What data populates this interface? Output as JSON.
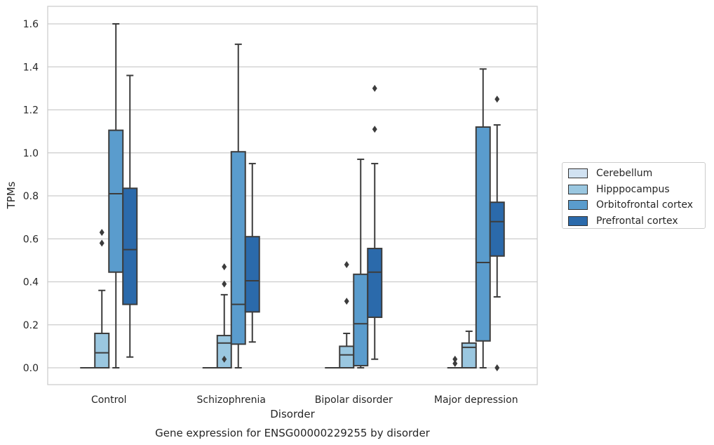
{
  "chart_data": {
    "type": "boxplot",
    "title": "Gene expression for ENSG00000229255 by disorder",
    "xlabel": "Disorder",
    "ylabel": "TPMs",
    "ylim": [
      -0.08,
      1.68
    ],
    "yticks": [
      0.0,
      0.2,
      0.4,
      0.6,
      0.8,
      1.0,
      1.2,
      1.4,
      1.6
    ],
    "ytick_labels": [
      "0.0",
      "0.2",
      "0.4",
      "0.6",
      "0.8",
      "1.0",
      "1.2",
      "1.4",
      "1.6"
    ],
    "grid": "horizontal",
    "legend_position": "right",
    "categories": [
      "Control",
      "Schizophrenia",
      "Bipolar disorder",
      "Major depression"
    ],
    "series": [
      {
        "name": "Cerebellum",
        "color": "#d1e2f2",
        "boxes": [
          {
            "whisker_low": 0,
            "q1": 0,
            "median": 0,
            "q3": 0,
            "whisker_high": 0,
            "fliers": []
          },
          {
            "whisker_low": 0,
            "q1": 0,
            "median": 0,
            "q3": 0,
            "whisker_high": 0,
            "fliers": []
          },
          {
            "whisker_low": 0,
            "q1": 0,
            "median": 0,
            "q3": 0,
            "whisker_high": 0,
            "fliers": []
          },
          {
            "whisker_low": 0,
            "q1": 0,
            "median": 0,
            "q3": 0,
            "whisker_high": 0,
            "fliers": [
              0.02,
              0.04
            ]
          }
        ]
      },
      {
        "name": "Hipppocampus",
        "color": "#9ac7e0",
        "boxes": [
          {
            "whisker_low": 0,
            "q1": 0,
            "median": 0.07,
            "q3": 0.16,
            "whisker_high": 0.36,
            "fliers": [
              0.58,
              0.63
            ]
          },
          {
            "whisker_low": 0,
            "q1": 0,
            "median": 0.115,
            "q3": 0.15,
            "whisker_high": 0.34,
            "fliers": [
              0.04,
              0.39,
              0.47
            ]
          },
          {
            "whisker_low": 0,
            "q1": 0,
            "median": 0.06,
            "q3": 0.1,
            "whisker_high": 0.16,
            "fliers": [
              0.31,
              0.48
            ]
          },
          {
            "whisker_low": 0,
            "q1": 0,
            "median": 0.095,
            "q3": 0.115,
            "whisker_high": 0.17,
            "fliers": []
          }
        ]
      },
      {
        "name": "Orbitofrontal cortex",
        "color": "#5a9ccd",
        "boxes": [
          {
            "whisker_low": 0,
            "q1": 0.445,
            "median": 0.81,
            "q3": 1.105,
            "whisker_high": 1.6,
            "fliers": []
          },
          {
            "whisker_low": 0,
            "q1": 0.11,
            "median": 0.295,
            "q3": 1.005,
            "whisker_high": 1.505,
            "fliers": []
          },
          {
            "whisker_low": 0,
            "q1": 0.01,
            "median": 0.205,
            "q3": 0.435,
            "whisker_high": 0.97,
            "fliers": []
          },
          {
            "whisker_low": 0,
            "q1": 0.125,
            "median": 0.49,
            "q3": 1.12,
            "whisker_high": 1.39,
            "fliers": []
          }
        ]
      },
      {
        "name": "Prefrontal cortex",
        "color": "#2b6aab",
        "boxes": [
          {
            "whisker_low": 0.05,
            "q1": 0.295,
            "median": 0.55,
            "q3": 0.835,
            "whisker_high": 1.36,
            "fliers": []
          },
          {
            "whisker_low": 0.12,
            "q1": 0.26,
            "median": 0.405,
            "q3": 0.61,
            "whisker_high": 0.95,
            "fliers": []
          },
          {
            "whisker_low": 0.04,
            "q1": 0.235,
            "median": 0.445,
            "q3": 0.555,
            "whisker_high": 0.95,
            "fliers": [
              1.11,
              1.3
            ]
          },
          {
            "whisker_low": 0.33,
            "q1": 0.52,
            "median": 0.68,
            "q3": 0.77,
            "whisker_high": 1.13,
            "fliers": [
              0.0,
              1.25
            ]
          }
        ]
      }
    ]
  }
}
